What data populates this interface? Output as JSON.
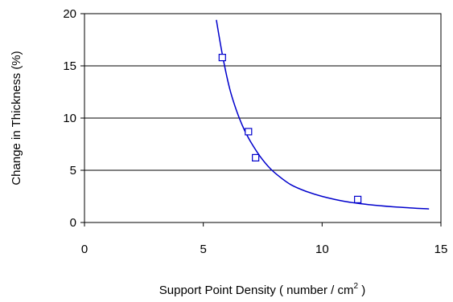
{
  "chart_data": {
    "type": "scatter",
    "xlabel": {
      "prefix": "Support Point Density ( number / cm",
      "superscript": "2",
      "suffix": " )"
    },
    "ylabel": "Change in Thickness (%)",
    "xlim": [
      0,
      15
    ],
    "ylim": [
      0,
      20
    ],
    "xticks": [
      0,
      5,
      10,
      15
    ],
    "yticks": [
      0,
      5,
      10,
      15,
      20
    ],
    "xtick_labels": [
      "0",
      "5",
      "10",
      "15"
    ],
    "ytick_labels": [
      "0",
      "5",
      "10",
      "15",
      "20"
    ],
    "grid": "horizontal",
    "legend": "none",
    "series": [
      {
        "kind": "markers",
        "marker": "square",
        "x": [
          5.8,
          6.9,
          7.2,
          11.5
        ],
        "y": [
          15.8,
          8.7,
          6.2,
          2.2
        ]
      },
      {
        "kind": "line",
        "x": [
          5.55,
          5.8,
          6.1,
          6.4,
          6.7,
          7.0,
          7.4,
          7.8,
          8.2,
          8.7,
          9.3,
          10.0,
          11.0,
          12.0,
          13.0,
          14.5
        ],
        "y": [
          19.4,
          16.1,
          12.9,
          10.7,
          9.0,
          7.7,
          6.3,
          5.2,
          4.4,
          3.6,
          3.0,
          2.5,
          2.0,
          1.7,
          1.5,
          1.3
        ]
      }
    ],
    "colors": {
      "series": "#0000cc",
      "axis": "#000000",
      "grid": "#000000"
    }
  }
}
